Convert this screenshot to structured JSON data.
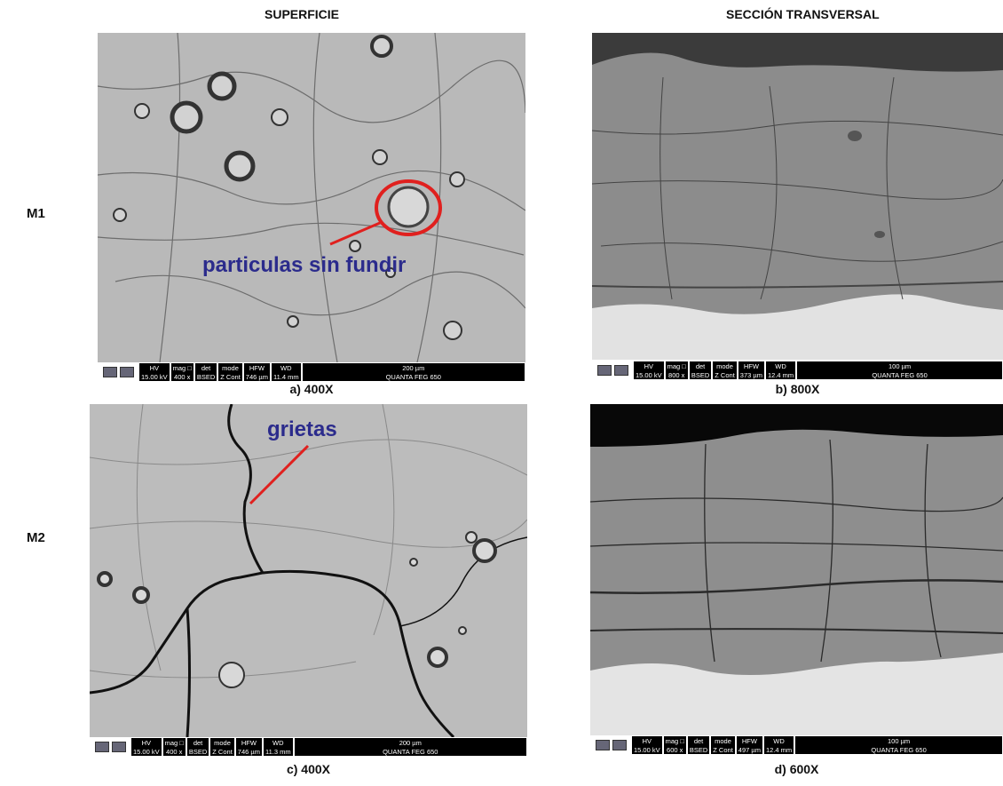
{
  "header": {
    "columns": [
      "SUPERFICIE",
      "SECCIÓN TRANSVERSAL"
    ]
  },
  "rows": [
    "M1",
    "M2"
  ],
  "panels": [
    {
      "caption": "a) 400X",
      "annotation": "particulas sin fundir",
      "info": {
        "labels": [
          "HV",
          "mag □",
          "det",
          "mode",
          "HFW",
          "WD"
        ],
        "values": [
          "15.00 kV",
          "400 x",
          "BSED",
          "Z Cont",
          "746 µm",
          "11.4 mm"
        ],
        "scale": "200 µm",
        "instrument": "QUANTA FEG 650"
      }
    },
    {
      "caption": "b) 800X",
      "info": {
        "labels": [
          "HV",
          "mag □",
          "det",
          "mode",
          "HFW",
          "WD"
        ],
        "values": [
          "15.00 kV",
          "800 x",
          "BSED",
          "Z Cont",
          "373 µm",
          "12.4 mm"
        ],
        "scale": "100 µm",
        "instrument": "QUANTA FEG 650"
      }
    },
    {
      "caption": "c) 400X",
      "annotation": "grietas",
      "info": {
        "labels": [
          "HV",
          "mag □",
          "det",
          "mode",
          "HFW",
          "WD"
        ],
        "values": [
          "15.00 kV",
          "400 x",
          "BSED",
          "Z Cont",
          "746 µm",
          "11.3 mm"
        ],
        "scale": "200 µm",
        "instrument": "QUANTA FEG 650"
      }
    },
    {
      "caption": "d) 600X",
      "info": {
        "labels": [
          "HV",
          "mag □",
          "det",
          "mode",
          "HFW",
          "WD"
        ],
        "values": [
          "15.00 kV",
          "600 x",
          "BSED",
          "Z Cont",
          "497 µm",
          "12.4 mm"
        ],
        "scale": "100 µm",
        "instrument": "QUANTA FEG 650"
      }
    }
  ]
}
